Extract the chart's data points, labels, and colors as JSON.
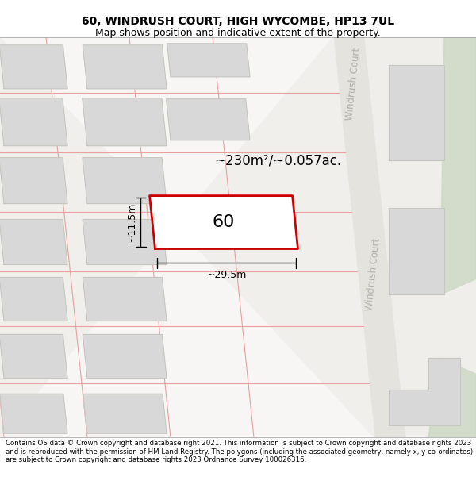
{
  "title": "60, WINDRUSH COURT, HIGH WYCOMBE, HP13 7UL",
  "subtitle": "Map shows position and indicative extent of the property.",
  "footer": "Contains OS data © Crown copyright and database right 2021. This information is subject to Crown copyright and database rights 2023 and is reproduced with the permission of HM Land Registry. The polygons (including the associated geometry, namely x, y co-ordinates) are subject to Crown copyright and database rights 2023 Ordnance Survey 100026316.",
  "bg_color": "#f7f6f4",
  "plot_line_color": "#e8a0a0",
  "highlight_color": "#cc0000",
  "highlight_fill": "#ffffff",
  "building_color": "#d8d8d8",
  "green_area_color": "#ccd8c4",
  "road_label": "Windrush Court",
  "area_label": "~230m²/~0.057ac.",
  "number_label": "60",
  "dim_width": "~29.5m",
  "dim_height": "~11.5m"
}
